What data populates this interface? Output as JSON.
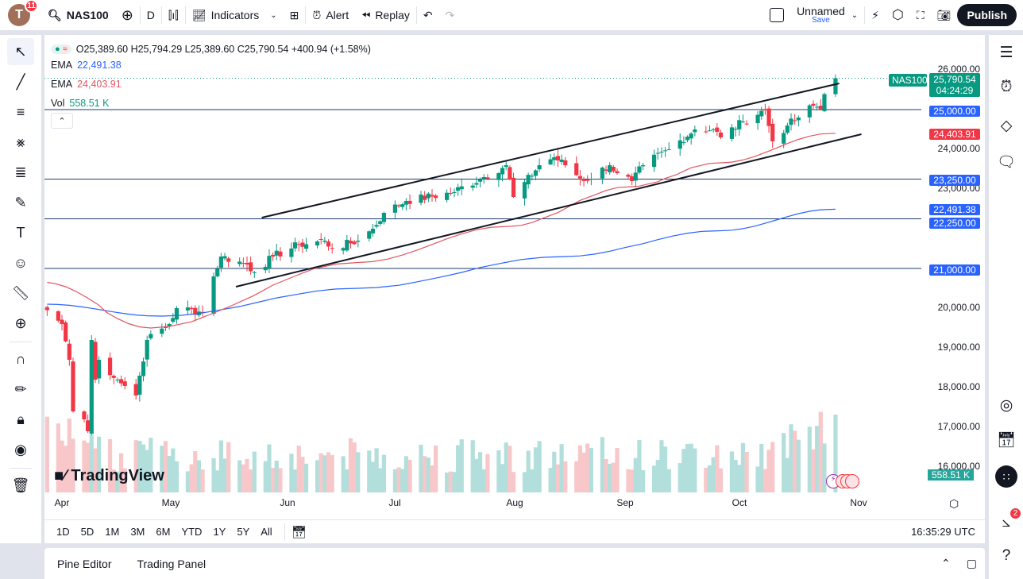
{
  "topbar": {
    "avatar_letter": "T",
    "notifications": "11",
    "symbol": "NAS100",
    "interval": "D",
    "indicators": "Indicators",
    "alert": "Alert",
    "replay": "Replay",
    "layout_name": "Unnamed",
    "save": "Save",
    "publish": "Publish"
  },
  "legend": {
    "ohlc": "O25,389.60 H25,794.29 L25,389.60 C25,790.54 +400.94 (+1.58%)",
    "ema1_label": "EMA",
    "ema1_value": "22,491.38",
    "ema2_label": "EMA",
    "ema2_value": "24,403.91",
    "vol_label": "Vol",
    "vol_value": "558.51 K"
  },
  "price_axis": {
    "labels": [
      "26,000.00",
      "24,000.00",
      "23,000.00",
      "20,000.00",
      "19,000.00",
      "18,000.00",
      "17,000.00",
      "16,000.00"
    ],
    "symbol_tag": "NAS100",
    "last_price": "25,790.54",
    "countdown": "04:24:29",
    "levels": [
      "25,000.00",
      "23,250.00",
      "22,250.00",
      "21,000.00"
    ],
    "ema_slow": "22,491.38",
    "ema_fast": "24,403.91",
    "volume": "558.51 K"
  },
  "time_axis": {
    "months": [
      "Apr",
      "May",
      "Jun",
      "Jul",
      "Aug",
      "Sep",
      "Oct",
      "Nov"
    ],
    "clock": "16:35:29 UTC"
  },
  "ranges": [
    "1D",
    "5D",
    "1M",
    "3M",
    "6M",
    "YTD",
    "1Y",
    "5Y",
    "All"
  ],
  "bottom": {
    "pine": "Pine Editor",
    "trading": "Trading Panel"
  },
  "right_badge": "2",
  "watermark": "TradingView",
  "colors": {
    "up": "#089981",
    "down": "#f23645",
    "ema_fast": "#e05560",
    "ema_slow": "#2962ff",
    "level": "#1e3a6e",
    "badge_blue": "#2962ff",
    "vol_up": "#b2dfdb",
    "vol_down": "#f7c7c9"
  },
  "chart_data": {
    "type": "candlestick",
    "symbol": "NAS100",
    "interval": "D",
    "ylim": [
      16000,
      26000
    ],
    "key_closes": [
      [
        "2025-03-28",
        19950
      ],
      [
        "2025-04-01",
        19600
      ],
      [
        "2025-04-03",
        18700
      ],
      [
        "2025-04-04",
        17400
      ],
      [
        "2025-04-07",
        17200
      ],
      [
        "2025-04-08",
        16900
      ],
      [
        "2025-04-09",
        19200
      ],
      [
        "2025-04-10",
        18200
      ],
      [
        "2025-04-11",
        18700
      ],
      [
        "2025-04-16",
        18200
      ],
      [
        "2025-04-21",
        17800
      ],
      [
        "2025-04-22",
        18300
      ],
      [
        "2025-04-24",
        19200
      ],
      [
        "2025-04-30",
        19600
      ],
      [
        "2025-05-02",
        20000
      ],
      [
        "2025-05-09",
        19900
      ],
      [
        "2025-05-12",
        20800
      ],
      [
        "2025-05-14",
        21300
      ],
      [
        "2025-05-21",
        21100
      ],
      [
        "2025-05-23",
        20900
      ],
      [
        "2025-05-28",
        21300
      ],
      [
        "2025-06-04",
        21600
      ],
      [
        "2025-06-11",
        21700
      ],
      [
        "2025-06-13",
        21500
      ],
      [
        "2025-06-20",
        21700
      ],
      [
        "2025-06-24",
        22000
      ],
      [
        "2025-06-27",
        22400
      ],
      [
        "2025-07-03",
        22700
      ],
      [
        "2025-07-15",
        22900
      ],
      [
        "2025-07-24",
        23300
      ],
      [
        "2025-07-30",
        23600
      ],
      [
        "2025-08-01",
        22800
      ],
      [
        "2025-08-08",
        23600
      ],
      [
        "2025-08-12",
        23800
      ],
      [
        "2025-08-15",
        23600
      ],
      [
        "2025-08-20",
        23200
      ],
      [
        "2025-08-27",
        23600
      ],
      [
        "2025-08-29",
        23400
      ],
      [
        "2025-09-02",
        23200
      ],
      [
        "2025-09-05",
        23600
      ],
      [
        "2025-09-12",
        24000
      ],
      [
        "2025-09-19",
        24500
      ],
      [
        "2025-09-24",
        24500
      ],
      [
        "2025-09-26",
        24300
      ],
      [
        "2025-10-02",
        24700
      ],
      [
        "2025-10-08",
        25000
      ],
      [
        "2025-10-10",
        24200
      ],
      [
        "2025-10-14",
        24600
      ],
      [
        "2025-10-17",
        24800
      ],
      [
        "2025-10-21",
        25100
      ],
      [
        "2025-10-23",
        25000
      ],
      [
        "2025-10-24",
        25389.6
      ],
      [
        "2025-10-27",
        25790.54
      ]
    ],
    "ema_fast_points": [
      [
        "2025-03-28",
        20650
      ],
      [
        "2025-04-25",
        19500
      ],
      [
        "2025-06-20",
        21150
      ],
      [
        "2025-07-31",
        22060
      ],
      [
        "2025-09-02",
        23060
      ],
      [
        "2025-09-26",
        23660
      ],
      [
        "2025-10-27",
        24403.91
      ]
    ],
    "ema_slow_points": [
      [
        "2025-03-28",
        20100
      ],
      [
        "2025-04-28",
        19800
      ],
      [
        "2025-06-20",
        20500
      ],
      [
        "2025-08-15",
        21300
      ],
      [
        "2025-09-26",
        21950
      ],
      [
        "2025-10-27",
        22491.38
      ]
    ],
    "horizontal_levels": [
      25000,
      23250,
      22250,
      21000
    ],
    "trendlines": [
      {
        "from": [
          "2025-05-25",
          22280
        ],
        "to": [
          "2025-10-28",
          25660
        ]
      },
      {
        "from": [
          "2025-05-18",
          20540
        ],
        "to": [
          "2025-11-03",
          24380
        ]
      }
    ]
  }
}
